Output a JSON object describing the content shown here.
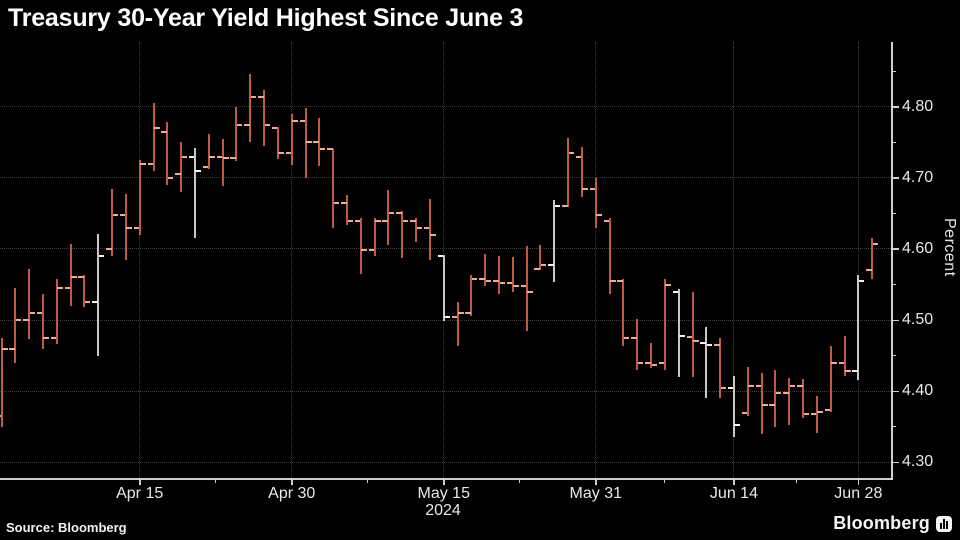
{
  "title": "Treasury 30-Year Yield Highest Since June 3",
  "footer": {
    "source": "Source: Bloomberg",
    "brand": "Bloomberg"
  },
  "colors": {
    "background": "#000000",
    "title_text": "#ffffff",
    "axis_line": "#cfcfcf",
    "tick_label": "#e8e8e6",
    "gridline": "#3c3c3c",
    "bar_red": "#c05a44",
    "bar_red_tick": "#ecab92",
    "bar_pale": "#cdc7c1",
    "bar_pale_tick": "#f4f1ee"
  },
  "chart_data": {
    "type": "ohlc_bar",
    "title": "Treasury 30-Year Yield Highest Since June 3",
    "xlabel": "",
    "ylabel": "Percent",
    "ylim": [
      4.28,
      4.89
    ],
    "grid": "dotted, on major ticks only",
    "x_axis_year": "2024",
    "y_ticks": [
      {
        "value": 4.8,
        "label": "4.80"
      },
      {
        "value": 4.7,
        "label": "4.70"
      },
      {
        "value": 4.6,
        "label": "4.60"
      },
      {
        "value": 4.5,
        "label": "4.50"
      },
      {
        "value": 4.4,
        "label": "4.40"
      },
      {
        "value": 4.3,
        "label": "4.30"
      }
    ],
    "y_minor_ticks": [
      4.85,
      4.75,
      4.65,
      4.55,
      4.45,
      4.35
    ],
    "x_ticks": [
      {
        "label": "Apr 15",
        "index": 10
      },
      {
        "label": "Apr 30",
        "index": 21
      },
      {
        "label": "May 15",
        "index": 32
      },
      {
        "label": "May 31",
        "index": 43
      },
      {
        "label": "Jun 14",
        "index": 53
      },
      {
        "label": "Jun 28",
        "index": 62
      }
    ],
    "bars": [
      {
        "date": "Apr 1",
        "open": 4.365,
        "high": 4.475,
        "low": 4.35,
        "close": 4.46,
        "pale": false
      },
      {
        "date": "Apr 2",
        "open": 4.46,
        "high": 4.545,
        "low": 4.44,
        "close": 4.5,
        "pale": false
      },
      {
        "date": "Apr 3",
        "open": 4.5,
        "high": 4.572,
        "low": 4.473,
        "close": 4.51,
        "pale": false
      },
      {
        "date": "Apr 4",
        "open": 4.51,
        "high": 4.537,
        "low": 4.46,
        "close": 4.475,
        "pale": false
      },
      {
        "date": "Apr 5",
        "open": 4.475,
        "high": 4.558,
        "low": 4.466,
        "close": 4.545,
        "pale": false
      },
      {
        "date": "Apr 8",
        "open": 4.545,
        "high": 4.607,
        "low": 4.52,
        "close": 4.56,
        "pale": false
      },
      {
        "date": "Apr 9",
        "open": 4.56,
        "high": 4.563,
        "low": 4.518,
        "close": 4.525,
        "pale": false
      },
      {
        "date": "Apr 10",
        "open": 4.525,
        "high": 4.621,
        "low": 4.45,
        "close": 4.59,
        "pale": true
      },
      {
        "date": "Apr 11",
        "open": 4.6,
        "high": 4.684,
        "low": 4.59,
        "close": 4.648,
        "pale": false
      },
      {
        "date": "Apr 12",
        "open": 4.648,
        "high": 4.677,
        "low": 4.585,
        "close": 4.63,
        "pale": false
      },
      {
        "date": "Apr 15",
        "open": 4.63,
        "high": 4.725,
        "low": 4.62,
        "close": 4.72,
        "pale": false
      },
      {
        "date": "Apr 16",
        "open": 4.72,
        "high": 4.805,
        "low": 4.71,
        "close": 4.77,
        "pale": false
      },
      {
        "date": "Apr 17",
        "open": 4.765,
        "high": 4.778,
        "low": 4.69,
        "close": 4.7,
        "pale": false
      },
      {
        "date": "Apr 18",
        "open": 4.705,
        "high": 4.751,
        "low": 4.68,
        "close": 4.73,
        "pale": false
      },
      {
        "date": "Apr 19",
        "open": 4.73,
        "high": 4.742,
        "low": 4.615,
        "close": 4.71,
        "pale": true
      },
      {
        "date": "Apr 22",
        "open": 4.715,
        "high": 4.762,
        "low": 4.713,
        "close": 4.73,
        "pale": false
      },
      {
        "date": "Apr 23",
        "open": 4.73,
        "high": 4.754,
        "low": 4.688,
        "close": 4.728,
        "pale": false
      },
      {
        "date": "Apr 24",
        "open": 4.728,
        "high": 4.8,
        "low": 4.724,
        "close": 4.775,
        "pale": false
      },
      {
        "date": "Apr 25",
        "open": 4.775,
        "high": 4.846,
        "low": 4.751,
        "close": 4.814,
        "pale": false
      },
      {
        "date": "Apr 26",
        "open": 4.814,
        "high": 4.824,
        "low": 4.745,
        "close": 4.775,
        "pale": false
      },
      {
        "date": "Apr 29",
        "open": 4.77,
        "high": 4.772,
        "low": 4.727,
        "close": 4.735,
        "pale": false
      },
      {
        "date": "Apr 30",
        "open": 4.735,
        "high": 4.79,
        "low": 4.718,
        "close": 4.78,
        "pale": false
      },
      {
        "date": "May 1",
        "open": 4.78,
        "high": 4.798,
        "low": 4.7,
        "close": 4.75,
        "pale": false
      },
      {
        "date": "May 2",
        "open": 4.75,
        "high": 4.784,
        "low": 4.716,
        "close": 4.74,
        "pale": false
      },
      {
        "date": "May 3",
        "open": 4.74,
        "high": 4.74,
        "low": 4.629,
        "close": 4.665,
        "pale": false
      },
      {
        "date": "May 6",
        "open": 4.665,
        "high": 4.676,
        "low": 4.633,
        "close": 4.64,
        "pale": false
      },
      {
        "date": "May 7",
        "open": 4.64,
        "high": 4.643,
        "low": 4.565,
        "close": 4.598,
        "pale": false
      },
      {
        "date": "May 8",
        "open": 4.598,
        "high": 4.644,
        "low": 4.59,
        "close": 4.64,
        "pale": false
      },
      {
        "date": "May 9",
        "open": 4.64,
        "high": 4.683,
        "low": 4.605,
        "close": 4.65,
        "pale": false
      },
      {
        "date": "May 10",
        "open": 4.65,
        "high": 4.653,
        "low": 4.587,
        "close": 4.64,
        "pale": false
      },
      {
        "date": "May 13",
        "open": 4.64,
        "high": 4.644,
        "low": 4.61,
        "close": 4.63,
        "pale": false
      },
      {
        "date": "May 14",
        "open": 4.63,
        "high": 4.67,
        "low": 4.584,
        "close": 4.62,
        "pale": false
      },
      {
        "date": "May 15",
        "open": 4.59,
        "high": 4.592,
        "low": 4.499,
        "close": 4.505,
        "pale": true
      },
      {
        "date": "May 16",
        "open": 4.505,
        "high": 4.525,
        "low": 4.463,
        "close": 4.51,
        "pale": false
      },
      {
        "date": "May 17",
        "open": 4.51,
        "high": 4.563,
        "low": 4.506,
        "close": 4.558,
        "pale": false
      },
      {
        "date": "May 20",
        "open": 4.558,
        "high": 4.593,
        "low": 4.548,
        "close": 4.555,
        "pale": false
      },
      {
        "date": "May 21",
        "open": 4.555,
        "high": 4.59,
        "low": 4.537,
        "close": 4.552,
        "pale": false
      },
      {
        "date": "May 22",
        "open": 4.552,
        "high": 4.589,
        "low": 4.539,
        "close": 4.548,
        "pale": false
      },
      {
        "date": "May 23",
        "open": 4.548,
        "high": 4.604,
        "low": 4.485,
        "close": 4.54,
        "pale": false
      },
      {
        "date": "May 24",
        "open": 4.572,
        "high": 4.605,
        "low": 4.57,
        "close": 4.578,
        "pale": false
      },
      {
        "date": "May 28",
        "open": 4.578,
        "high": 4.669,
        "low": 4.553,
        "close": 4.66,
        "pale": true
      },
      {
        "date": "May 29",
        "open": 4.66,
        "high": 4.756,
        "low": 4.659,
        "close": 4.735,
        "pale": false
      },
      {
        "date": "May 30",
        "open": 4.73,
        "high": 4.744,
        "low": 4.673,
        "close": 4.685,
        "pale": false
      },
      {
        "date": "May 31",
        "open": 4.685,
        "high": 4.7,
        "low": 4.629,
        "close": 4.648,
        "pale": false
      },
      {
        "date": "Jun 3",
        "open": 4.64,
        "high": 4.643,
        "low": 4.537,
        "close": 4.555,
        "pale": false
      },
      {
        "date": "Jun 4",
        "open": 4.555,
        "high": 4.558,
        "low": 4.463,
        "close": 4.475,
        "pale": false
      },
      {
        "date": "Jun 5",
        "open": 4.475,
        "high": 4.501,
        "low": 4.43,
        "close": 4.44,
        "pale": false
      },
      {
        "date": "Jun 6",
        "open": 4.44,
        "high": 4.468,
        "low": 4.433,
        "close": 4.437,
        "pale": false
      },
      {
        "date": "Jun 7",
        "open": 4.44,
        "high": 4.558,
        "low": 4.43,
        "close": 4.55,
        "pale": false
      },
      {
        "date": "Jun 10",
        "open": 4.54,
        "high": 4.544,
        "low": 4.42,
        "close": 4.478,
        "pale": true
      },
      {
        "date": "Jun 11",
        "open": 4.476,
        "high": 4.539,
        "low": 4.42,
        "close": 4.47,
        "pale": false
      },
      {
        "date": "Jun 12",
        "open": 4.468,
        "high": 4.49,
        "low": 4.39,
        "close": 4.465,
        "pale": true
      },
      {
        "date": "Jun 13",
        "open": 4.465,
        "high": 4.475,
        "low": 4.39,
        "close": 4.405,
        "pale": false
      },
      {
        "date": "Jun 14",
        "open": 4.405,
        "high": 4.421,
        "low": 4.335,
        "close": 4.352,
        "pale": true
      },
      {
        "date": "Jun 17",
        "open": 4.37,
        "high": 4.434,
        "low": 4.365,
        "close": 4.407,
        "pale": false
      },
      {
        "date": "Jun 18",
        "open": 4.407,
        "high": 4.425,
        "low": 4.34,
        "close": 4.38,
        "pale": false
      },
      {
        "date": "Jun 20",
        "open": 4.38,
        "high": 4.43,
        "low": 4.35,
        "close": 4.398,
        "pale": false
      },
      {
        "date": "Jun 21",
        "open": 4.398,
        "high": 4.419,
        "low": 4.353,
        "close": 4.408,
        "pale": false
      },
      {
        "date": "Jun 24",
        "open": 4.408,
        "high": 4.417,
        "low": 4.362,
        "close": 4.368,
        "pale": false
      },
      {
        "date": "Jun 25",
        "open": 4.368,
        "high": 4.393,
        "low": 4.341,
        "close": 4.371,
        "pale": false
      },
      {
        "date": "Jun 26",
        "open": 4.373,
        "high": 4.464,
        "low": 4.371,
        "close": 4.44,
        "pale": false
      },
      {
        "date": "Jun 27",
        "open": 4.44,
        "high": 4.478,
        "low": 4.421,
        "close": 4.428,
        "pale": false
      },
      {
        "date": "Jun 28",
        "open": 4.428,
        "high": 4.563,
        "low": 4.416,
        "close": 4.555,
        "pale": true
      },
      {
        "date": "Jul 1",
        "open": 4.57,
        "high": 4.615,
        "low": 4.558,
        "close": 4.607,
        "pale": false
      }
    ]
  }
}
